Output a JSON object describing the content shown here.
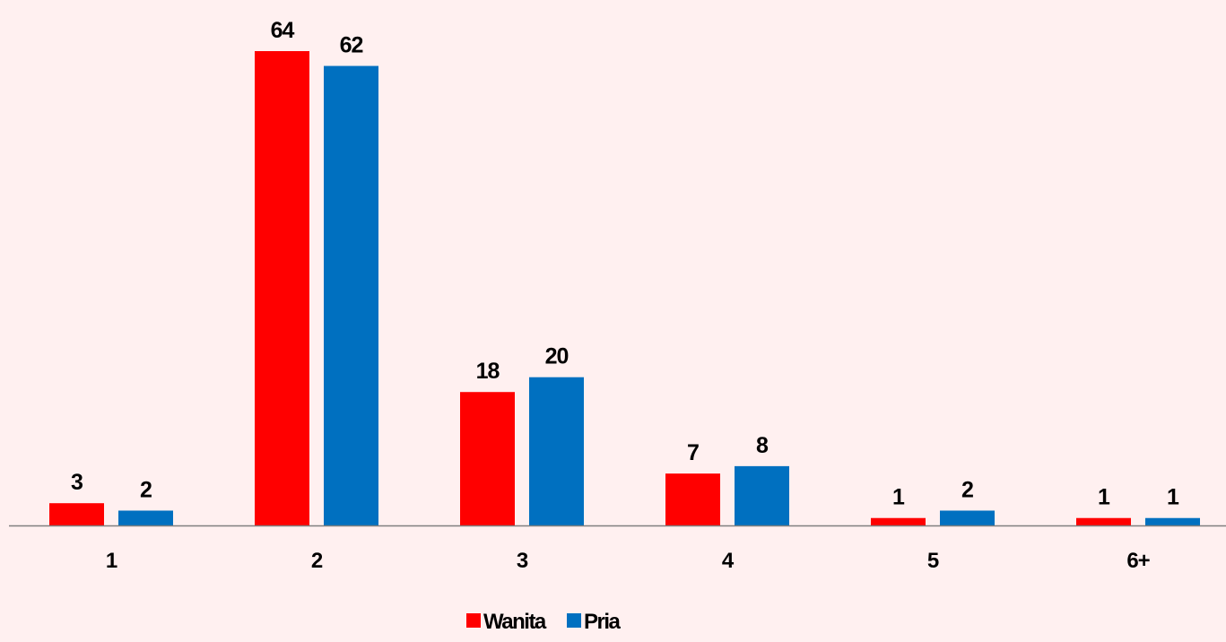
{
  "chart_data": {
    "type": "bar",
    "categories": [
      "1",
      "2",
      "3",
      "4",
      "5",
      "6+"
    ],
    "series": [
      {
        "name": "Wanita",
        "color": "#FF0000",
        "values": [
          3,
          64,
          18,
          7,
          1,
          1
        ]
      },
      {
        "name": "Pria",
        "color": "#0070C0",
        "values": [
          2,
          62,
          20,
          8,
          2,
          1
        ]
      }
    ],
    "ylim": [
      0,
      64
    ],
    "grid": false,
    "legend_position": "bottom",
    "data_labels": true
  }
}
